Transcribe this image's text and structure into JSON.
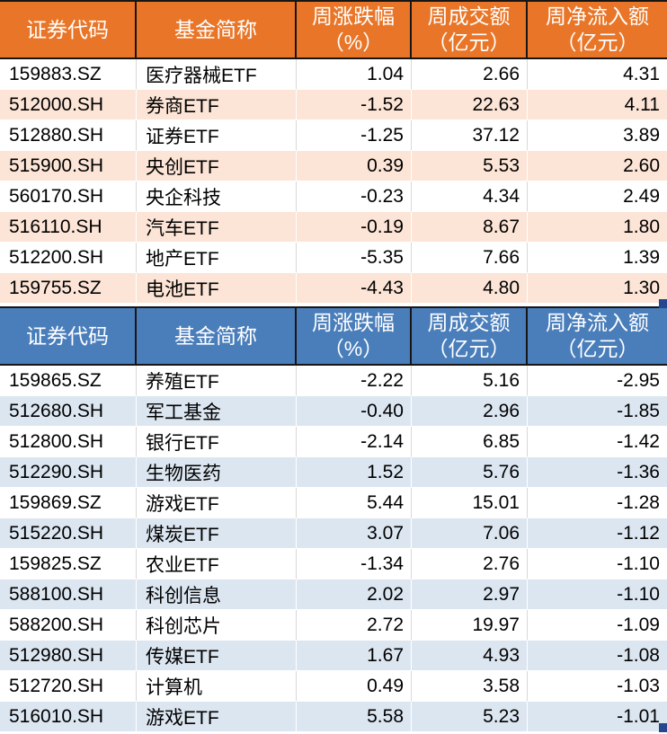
{
  "colors": {
    "inflow_header_bg": "#E97628",
    "inflow_row_alt_bg": "#FCE4D6",
    "outflow_header_bg": "#4A7EBB",
    "outflow_row_alt_bg": "#DCE6F1",
    "selection_handle": "#26478D",
    "grid_line": "#D9D9D9",
    "header_border": "#161616"
  },
  "columns": [
    {
      "label": "证券代码",
      "sub": ""
    },
    {
      "label": "基金简称",
      "sub": ""
    },
    {
      "label": "周涨跌幅",
      "sub": "（%）"
    },
    {
      "label": "周成交额",
      "sub": "（亿元）"
    },
    {
      "label": "周净流入额",
      "sub": "（亿元）"
    }
  ],
  "inflow_table": {
    "rows": [
      {
        "code": "159883.SZ",
        "name": "医疗器械ETF",
        "change": "1.04",
        "turnover": "2.66",
        "net_flow": "4.31"
      },
      {
        "code": "512000.SH",
        "name": "券商ETF",
        "change": "-1.52",
        "turnover": "22.63",
        "net_flow": "4.11"
      },
      {
        "code": "512880.SH",
        "name": "证券ETF",
        "change": "-1.25",
        "turnover": "37.12",
        "net_flow": "3.89"
      },
      {
        "code": "515900.SH",
        "name": "央创ETF",
        "change": "0.39",
        "turnover": "5.53",
        "net_flow": "2.60"
      },
      {
        "code": "560170.SH",
        "name": "央企科技",
        "change": "-0.23",
        "turnover": "4.34",
        "net_flow": "2.49"
      },
      {
        "code": "516110.SH",
        "name": "汽车ETF",
        "change": "-0.19",
        "turnover": "8.67",
        "net_flow": "1.80"
      },
      {
        "code": "512200.SH",
        "name": "地产ETF",
        "change": "-5.35",
        "turnover": "7.66",
        "net_flow": "1.39"
      },
      {
        "code": "159755.SZ",
        "name": "电池ETF",
        "change": "-4.43",
        "turnover": "4.80",
        "net_flow": "1.30"
      }
    ]
  },
  "outflow_table": {
    "rows": [
      {
        "code": "159865.SZ",
        "name": "养殖ETF",
        "change": "-2.22",
        "turnover": "5.16",
        "net_flow": "-2.95"
      },
      {
        "code": "512680.SH",
        "name": "军工基金",
        "change": "-0.40",
        "turnover": "2.96",
        "net_flow": "-1.85"
      },
      {
        "code": "512800.SH",
        "name": "银行ETF",
        "change": "-2.14",
        "turnover": "6.85",
        "net_flow": "-1.42"
      },
      {
        "code": "512290.SH",
        "name": "生物医药",
        "change": "1.52",
        "turnover": "5.76",
        "net_flow": "-1.36"
      },
      {
        "code": "159869.SZ",
        "name": "游戏ETF",
        "change": "5.44",
        "turnover": "15.01",
        "net_flow": "-1.28"
      },
      {
        "code": "515220.SH",
        "name": "煤炭ETF",
        "change": "3.07",
        "turnover": "7.06",
        "net_flow": "-1.12"
      },
      {
        "code": "159825.SZ",
        "name": "农业ETF",
        "change": "-1.34",
        "turnover": "2.76",
        "net_flow": "-1.10"
      },
      {
        "code": "588100.SH",
        "name": "科创信息",
        "change": "2.02",
        "turnover": "2.97",
        "net_flow": "-1.10"
      },
      {
        "code": "588200.SH",
        "name": "科创芯片",
        "change": "2.72",
        "turnover": "19.97",
        "net_flow": "-1.09"
      },
      {
        "code": "512980.SH",
        "name": "传媒ETF",
        "change": "1.67",
        "turnover": "4.93",
        "net_flow": "-1.08"
      },
      {
        "code": "512720.SH",
        "name": "计算机",
        "change": "0.49",
        "turnover": "3.58",
        "net_flow": "-1.03"
      },
      {
        "code": "516010.SH",
        "name": "游戏ETF",
        "change": "5.58",
        "turnover": "5.23",
        "net_flow": "-1.01"
      }
    ]
  },
  "chart_data": [
    {
      "type": "table",
      "title": "",
      "columns": [
        "证券代码",
        "基金简称",
        "周涨跌幅（%）",
        "周成交额（亿元）",
        "周净流入额（亿元）"
      ],
      "rows": [
        [
          "159883.SZ",
          "医疗器械ETF",
          1.04,
          2.66,
          4.31
        ],
        [
          "512000.SH",
          "券商ETF",
          -1.52,
          22.63,
          4.11
        ],
        [
          "512880.SH",
          "证券ETF",
          -1.25,
          37.12,
          3.89
        ],
        [
          "515900.SH",
          "央创ETF",
          0.39,
          5.53,
          2.6
        ],
        [
          "560170.SH",
          "央企科技",
          -0.23,
          4.34,
          2.49
        ],
        [
          "516110.SH",
          "汽车ETF",
          -0.19,
          8.67,
          1.8
        ],
        [
          "512200.SH",
          "地产ETF",
          -5.35,
          7.66,
          1.39
        ],
        [
          "159755.SZ",
          "电池ETF",
          -4.43,
          4.8,
          1.3
        ]
      ]
    },
    {
      "type": "table",
      "title": "",
      "columns": [
        "证券代码",
        "基金简称",
        "周涨跌幅（%）",
        "周成交额（亿元）",
        "周净流入额（亿元）"
      ],
      "rows": [
        [
          "159865.SZ",
          "养殖ETF",
          -2.22,
          5.16,
          -2.95
        ],
        [
          "512680.SH",
          "军工基金",
          -0.4,
          2.96,
          -1.85
        ],
        [
          "512800.SH",
          "银行ETF",
          -2.14,
          6.85,
          -1.42
        ],
        [
          "512290.SH",
          "生物医药",
          1.52,
          5.76,
          -1.36
        ],
        [
          "159869.SZ",
          "游戏ETF",
          5.44,
          15.01,
          -1.28
        ],
        [
          "515220.SH",
          "煤炭ETF",
          3.07,
          7.06,
          -1.12
        ],
        [
          "159825.SZ",
          "农业ETF",
          -1.34,
          2.76,
          -1.1
        ],
        [
          "588100.SH",
          "科创信息",
          2.02,
          2.97,
          -1.1
        ],
        [
          "588200.SH",
          "科创芯片",
          2.72,
          19.97,
          -1.09
        ],
        [
          "512980.SH",
          "传媒ETF",
          1.67,
          4.93,
          -1.08
        ],
        [
          "512720.SH",
          "计算机",
          0.49,
          3.58,
          -1.03
        ],
        [
          "516010.SH",
          "游戏ETF",
          5.58,
          5.23,
          -1.01
        ]
      ]
    }
  ]
}
